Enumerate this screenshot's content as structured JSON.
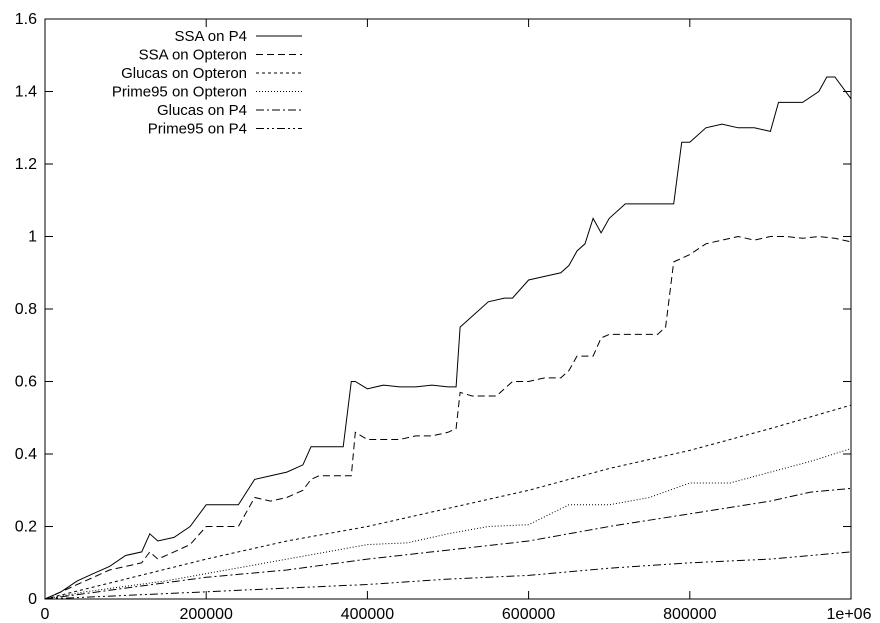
{
  "chart_data": {
    "type": "line",
    "title": "",
    "xlabel": "",
    "ylabel": "",
    "xlim": [
      0,
      1000000
    ],
    "ylim": [
      0,
      1.6
    ],
    "x_ticks": [
      0,
      200000,
      400000,
      600000,
      800000,
      1000000
    ],
    "x_tick_labels": [
      "0",
      "200000",
      "400000",
      "600000",
      "800000",
      "1e+06"
    ],
    "y_ticks": [
      0,
      0.2,
      0.4,
      0.6,
      0.8,
      1,
      1.2,
      1.4,
      1.6
    ],
    "y_tick_labels": [
      "0",
      "0.2",
      "0.4",
      "0.6",
      "0.8",
      "1",
      "1.2",
      "1.4",
      "1.6"
    ],
    "grid": false,
    "legend_position": "top-left",
    "series": [
      {
        "name": "SSA on P4",
        "dash": "solid",
        "x": [
          0,
          20000,
          40000,
          60000,
          80000,
          100000,
          120000,
          130000,
          140000,
          160000,
          180000,
          200000,
          240000,
          260000,
          280000,
          300000,
          320000,
          330000,
          340000,
          370000,
          380000,
          385000,
          400000,
          420000,
          440000,
          460000,
          480000,
          500000,
          510000,
          515000,
          530000,
          550000,
          570000,
          580000,
          600000,
          620000,
          640000,
          650000,
          660000,
          670000,
          680000,
          690000,
          700000,
          720000,
          740000,
          760000,
          780000,
          790000,
          800000,
          820000,
          840000,
          860000,
          880000,
          900000,
          910000,
          940000,
          960000,
          970000,
          980000,
          1000000
        ],
        "y": [
          0,
          0.02,
          0.05,
          0.07,
          0.09,
          0.12,
          0.13,
          0.18,
          0.16,
          0.17,
          0.2,
          0.26,
          0.26,
          0.33,
          0.34,
          0.35,
          0.37,
          0.42,
          0.42,
          0.42,
          0.6,
          0.6,
          0.58,
          0.59,
          0.585,
          0.585,
          0.59,
          0.585,
          0.585,
          0.75,
          0.78,
          0.82,
          0.83,
          0.83,
          0.88,
          0.89,
          0.9,
          0.92,
          0.96,
          0.98,
          1.05,
          1.01,
          1.05,
          1.09,
          1.09,
          1.09,
          1.09,
          1.26,
          1.26,
          1.3,
          1.31,
          1.3,
          1.3,
          1.29,
          1.37,
          1.37,
          1.4,
          1.44,
          1.44,
          1.38
        ]
      },
      {
        "name": "SSA on Opteron",
        "dash": "dashed",
        "x": [
          0,
          20000,
          40000,
          60000,
          80000,
          100000,
          120000,
          130000,
          140000,
          160000,
          180000,
          200000,
          240000,
          260000,
          280000,
          300000,
          320000,
          330000,
          340000,
          370000,
          380000,
          385000,
          400000,
          440000,
          460000,
          480000,
          500000,
          510000,
          515000,
          530000,
          560000,
          570000,
          580000,
          600000,
          620000,
          640000,
          650000,
          660000,
          680000,
          690000,
          700000,
          720000,
          740000,
          760000,
          770000,
          780000,
          800000,
          820000,
          840000,
          860000,
          880000,
          900000,
          920000,
          940000,
          960000,
          980000,
          1000000
        ],
        "y": [
          0,
          0.02,
          0.04,
          0.06,
          0.08,
          0.09,
          0.1,
          0.13,
          0.11,
          0.13,
          0.15,
          0.2,
          0.2,
          0.28,
          0.27,
          0.28,
          0.3,
          0.33,
          0.34,
          0.34,
          0.34,
          0.46,
          0.44,
          0.44,
          0.45,
          0.45,
          0.46,
          0.47,
          0.57,
          0.56,
          0.56,
          0.58,
          0.6,
          0.6,
          0.61,
          0.61,
          0.63,
          0.67,
          0.67,
          0.72,
          0.73,
          0.73,
          0.73,
          0.73,
          0.75,
          0.93,
          0.95,
          0.98,
          0.99,
          1.0,
          0.99,
          1.0,
          1.0,
          0.995,
          1.0,
          0.995,
          0.985
        ]
      },
      {
        "name": "Glucas on Opteron",
        "dash": "short-dashed",
        "x": [
          0,
          100000,
          200000,
          300000,
          400000,
          500000,
          600000,
          700000,
          800000,
          900000,
          1000000
        ],
        "y": [
          0,
          0.055,
          0.11,
          0.16,
          0.2,
          0.25,
          0.3,
          0.36,
          0.41,
          0.47,
          0.535
        ]
      },
      {
        "name": "Prime95 on Opteron",
        "dash": "dotted",
        "x": [
          0,
          50000,
          100000,
          150000,
          200000,
          250000,
          300000,
          350000,
          400000,
          450000,
          500000,
          550000,
          600000,
          650000,
          700000,
          750000,
          800000,
          850000,
          900000,
          950000,
          1000000
        ],
        "y": [
          0,
          0.02,
          0.035,
          0.05,
          0.07,
          0.09,
          0.11,
          0.13,
          0.15,
          0.155,
          0.18,
          0.2,
          0.205,
          0.26,
          0.26,
          0.28,
          0.32,
          0.32,
          0.35,
          0.38,
          0.415
        ]
      },
      {
        "name": "Glucas on P4",
        "dash": "dash-dot",
        "x": [
          0,
          100000,
          200000,
          300000,
          400000,
          500000,
          600000,
          700000,
          800000,
          900000,
          950000,
          1000000
        ],
        "y": [
          0,
          0.03,
          0.06,
          0.08,
          0.11,
          0.135,
          0.16,
          0.2,
          0.235,
          0.27,
          0.295,
          0.305
        ]
      },
      {
        "name": "Prime95 on P4",
        "dash": "dash-dot-dot",
        "x": [
          0,
          100000,
          200000,
          300000,
          400000,
          500000,
          600000,
          700000,
          800000,
          900000,
          1000000
        ],
        "y": [
          0,
          0.01,
          0.02,
          0.03,
          0.04,
          0.055,
          0.065,
          0.085,
          0.1,
          0.11,
          0.13
        ]
      }
    ]
  }
}
